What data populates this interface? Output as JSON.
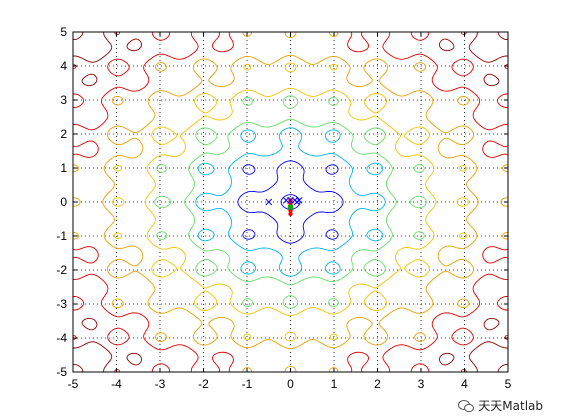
{
  "watermark": {
    "text": "天天Matlab"
  },
  "chart_data": {
    "type": "contour",
    "title": "",
    "xlabel": "",
    "ylabel": "",
    "xlim": [
      -5,
      5
    ],
    "ylim": [
      -5,
      5
    ],
    "xticks": [
      -5,
      -4,
      -3,
      -2,
      -1,
      0,
      1,
      2,
      3,
      4,
      5
    ],
    "yticks": [
      -5,
      -4,
      -3,
      -2,
      -1,
      0,
      1,
      2,
      3,
      4,
      5
    ],
    "grid": "dotted",
    "function": "Ackley-like: -20*exp(-0.2*sqrt(0.5*(x^2+y^2))) - exp(0.5*(cos(2*pi*x)+cos(2*pi*y))) + 20 + e",
    "levels": [
      {
        "value": 1.5,
        "color": "#0000ff"
      },
      {
        "value": 4.0,
        "color": "#0000ff"
      },
      {
        "value": 6.0,
        "color": "#00b4e6"
      },
      {
        "value": 7.5,
        "color": "#66dd66"
      },
      {
        "value": 9.0,
        "color": "#f2c400"
      },
      {
        "value": 10.5,
        "color": "#e8a000"
      },
      {
        "value": 12.0,
        "color": "#dd0000"
      },
      {
        "value": 13.4,
        "color": "#880000"
      }
    ],
    "markers": [
      {
        "x": -0.5,
        "y": 0.0,
        "symbol": "x",
        "color": "#0000ff"
      },
      {
        "x": -0.1,
        "y": 0.05,
        "symbol": "x",
        "color": "#0000ff"
      },
      {
        "x": 0.0,
        "y": 0.05,
        "symbol": "x",
        "color": "#0000ff"
      },
      {
        "x": 0.1,
        "y": 0.05,
        "symbol": "x",
        "color": "#0000ff"
      },
      {
        "x": 0.2,
        "y": 0.05,
        "symbol": "x",
        "color": "#0000ff"
      },
      {
        "x": 0.15,
        "y": 0.0,
        "symbol": "x",
        "color": "#0000ff"
      }
    ],
    "path": {
      "color": "#ff0000",
      "points": [
        [
          0,
          0.05
        ],
        [
          0,
          -0.02
        ],
        [
          0,
          -0.1
        ],
        [
          0,
          -0.18
        ],
        [
          0,
          -0.25
        ],
        [
          0,
          -0.35
        ]
      ]
    },
    "final_point": {
      "x": 0.0,
      "y": -0.15,
      "color": "#00aa00"
    }
  }
}
